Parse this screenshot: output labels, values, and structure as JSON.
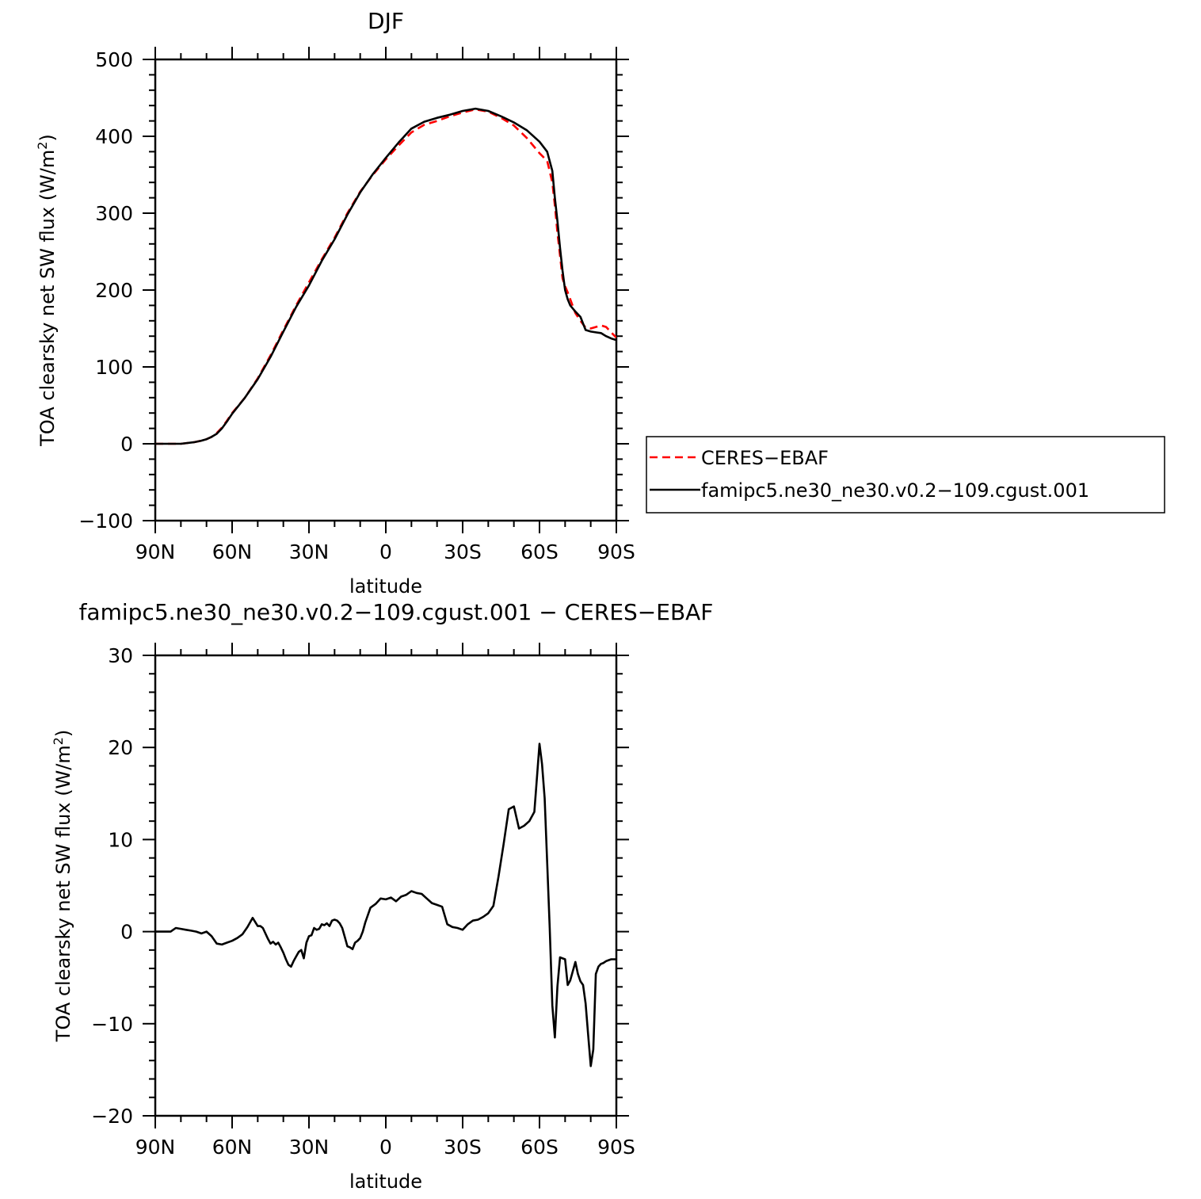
{
  "chart_data": [
    {
      "type": "line",
      "title": "DJF",
      "xlabel": "latitude",
      "ylabel": "TOA clearsky net SW flux (W/m",
      "ylabel_sup": "2",
      "ylabel_end": ")",
      "xlim": [
        90,
        -90
      ],
      "ylim": [
        -100,
        500
      ],
      "xticks": [
        90,
        60,
        30,
        0,
        -30,
        -60,
        -90
      ],
      "xtick_labels": [
        "90N",
        "60N",
        "30N",
        "0",
        "30S",
        "60S",
        "90S"
      ],
      "yticks": [
        -100,
        0,
        100,
        200,
        300,
        400,
        500
      ],
      "ytick_labels": [
        "−100",
        "0",
        "100",
        "200",
        "300",
        "400",
        "500"
      ],
      "legend": {
        "position": "right",
        "entries": [
          "CERES−EBAF",
          "famipc5.ne30_ne30.v0.2−109.cgust.001"
        ]
      },
      "series": [
        {
          "name": "CERES−EBAF",
          "color": "#ff0000",
          "dash": "dashed",
          "x": [
            90,
            85,
            80,
            75,
            72,
            70,
            68,
            66,
            64,
            62,
            60,
            55,
            50,
            45,
            40,
            35,
            30,
            25,
            20,
            15,
            10,
            5,
            0,
            -5,
            -10,
            -15,
            -20,
            -25,
            -30,
            -35,
            -40,
            -45,
            -50,
            -55,
            -60,
            -63,
            -65,
            -66,
            -67,
            -68,
            -69,
            -70,
            -71,
            -72,
            -74,
            -76,
            -78,
            -80,
            -82,
            -84,
            -86,
            -88,
            -90
          ],
          "y": [
            0,
            0,
            0,
            2,
            4,
            6,
            9,
            14,
            21,
            30,
            40,
            60,
            85,
            115,
            148,
            180,
            210,
            240,
            268,
            300,
            328,
            350,
            370,
            388,
            405,
            415,
            420,
            426,
            431,
            435,
            432,
            424,
            414,
            398,
            378,
            368,
            340,
            310,
            275,
            245,
            215,
            205,
            197,
            188,
            170,
            160,
            151,
            150,
            152,
            154,
            152,
            145,
            138
          ]
        },
        {
          "name": "famipc5.ne30_ne30.v0.2−109.cgust.001",
          "color": "#000000",
          "dash": "solid",
          "x": [
            90,
            85,
            80,
            75,
            72,
            70,
            68,
            66,
            64,
            62,
            60,
            55,
            50,
            45,
            40,
            35,
            30,
            25,
            20,
            15,
            10,
            5,
            0,
            -5,
            -10,
            -15,
            -20,
            -25,
            -30,
            -35,
            -40,
            -45,
            -50,
            -55,
            -60,
            -63,
            -65,
            -66,
            -67,
            -68,
            -69,
            -70,
            -71,
            -72,
            -74,
            -76,
            -78,
            -80,
            -82,
            -84,
            -86,
            -88,
            -90
          ],
          "y": [
            0,
            0,
            0,
            2,
            4,
            6,
            9,
            13,
            20,
            29,
            39,
            60,
            84,
            113,
            146,
            178,
            206,
            238,
            266,
            298,
            327,
            351,
            372,
            392,
            410,
            419,
            424,
            428,
            433,
            436,
            433,
            426,
            418,
            408,
            393,
            380,
            355,
            320,
            290,
            255,
            225,
            200,
            188,
            180,
            172,
            165,
            148,
            146,
            145,
            144,
            140,
            137,
            135
          ]
        }
      ]
    },
    {
      "type": "line",
      "title": "famipc5.ne30_ne30.v0.2−109.cgust.001  −  CERES−EBAF",
      "xlabel": "latitude",
      "ylabel": "TOA clearsky net SW flux (W/m",
      "ylabel_sup": "2",
      "ylabel_end": ")",
      "xlim": [
        90,
        -90
      ],
      "ylim": [
        -20,
        30
      ],
      "xticks": [
        90,
        60,
        30,
        0,
        -30,
        -60,
        -90
      ],
      "xtick_labels": [
        "90N",
        "60N",
        "30N",
        "0",
        "30S",
        "60S",
        "90S"
      ],
      "yticks": [
        -20,
        -10,
        0,
        10,
        20,
        30
      ],
      "ytick_labels": [
        "−20",
        "−10",
        "0",
        "10",
        "20",
        "30"
      ],
      "series": [
        {
          "color": "#000000",
          "dash": "solid",
          "x": [
            90,
            84,
            82,
            80,
            78,
            76,
            74,
            72,
            70,
            68,
            66,
            64,
            62,
            60,
            58,
            56,
            54,
            52,
            50,
            49,
            48,
            46,
            45,
            44,
            43,
            42,
            41,
            40,
            39,
            38,
            37,
            36,
            35,
            34,
            33,
            32,
            31,
            30,
            29,
            28,
            27,
            26,
            25,
            24,
            23,
            22,
            21,
            20,
            19,
            18,
            17,
            16,
            15,
            14,
            13,
            12,
            11,
            10,
            9,
            8,
            6,
            4,
            2,
            0,
            -2,
            -4,
            -6,
            -8,
            -10,
            -12,
            -14,
            -16,
            -18,
            -20,
            -22,
            -24,
            -26,
            -28,
            -30,
            -32,
            -34,
            -36,
            -38,
            -40,
            -42,
            -44,
            -46,
            -48,
            -50,
            -52,
            -54,
            -56,
            -58,
            -60,
            -61,
            -62,
            -63,
            -64,
            -65,
            -66,
            -67,
            -68,
            -70,
            -71,
            -72,
            -74,
            -75,
            -76,
            -77,
            -78,
            -79,
            -80,
            -81,
            -82,
            -83,
            -84,
            -85,
            -86,
            -87,
            -88,
            -89,
            -90
          ],
          "y": [
            0,
            0,
            0.4,
            0.3,
            0.2,
            0.1,
            0,
            -0.2,
            0,
            -0.5,
            -1.3,
            -1.4,
            -1.2,
            -1.0,
            -0.7,
            -0.3,
            0.5,
            1.5,
            0.6,
            0.6,
            0.4,
            -0.8,
            -1.3,
            -1.1,
            -1.4,
            -1.2,
            -1.7,
            -2.3,
            -3.0,
            -3.6,
            -3.8,
            -3.2,
            -2.7,
            -2.2,
            -2.0,
            -2.9,
            -1.2,
            -0.5,
            -0.4,
            0.4,
            0.2,
            0.3,
            0.8,
            0.7,
            0.9,
            0.6,
            1.2,
            1.3,
            1.2,
            0.9,
            0.4,
            -0.6,
            -1.6,
            -1.7,
            -1.9,
            -1.2,
            -1.0,
            -0.7,
            0,
            1.0,
            2.6,
            3.0,
            3.6,
            3.5,
            3.7,
            3.3,
            3.8,
            4.0,
            4.4,
            4.2,
            4.1,
            3.6,
            3.1,
            2.9,
            2.7,
            0.8,
            0.5,
            0.4,
            0.2,
            0.8,
            1.2,
            1.3,
            1.6,
            2.0,
            2.8,
            6.0,
            9.5,
            13.3,
            13.6,
            11.2,
            11.5,
            12.0,
            13.0,
            20.4,
            18.2,
            14.5,
            7.5,
            0.4,
            -8.0,
            -11.5,
            -6.0,
            -2.8,
            -3.0,
            -5.8,
            -5.3,
            -3.3,
            -4.6,
            -5.4,
            -5.8,
            -7.8,
            -11.2,
            -14.6,
            -12.8,
            -4.6,
            -3.8,
            -3.5,
            -3.4,
            -3.2,
            -3.1,
            -3.0,
            -3.0,
            -3.0
          ]
        }
      ]
    }
  ]
}
